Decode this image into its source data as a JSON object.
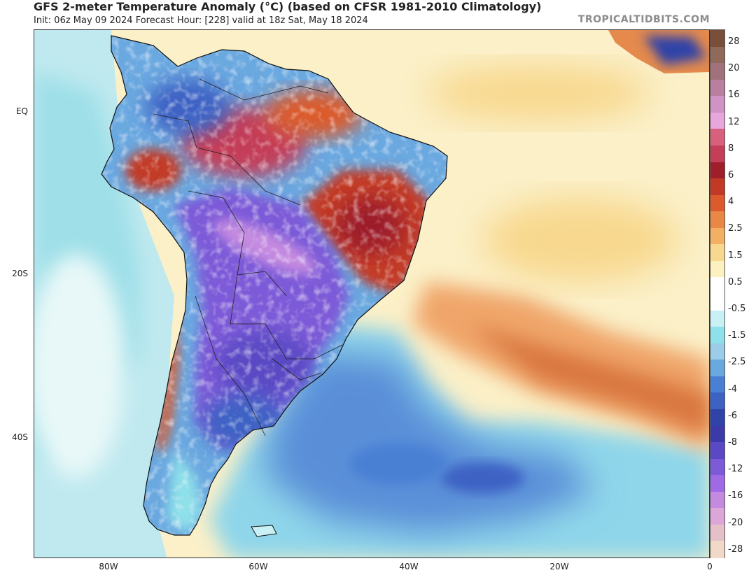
{
  "header": {
    "title": "GFS 2-meter Temperature Anomaly (°C) (based on CFSR 1981-2010 Climatology)",
    "subtitle": "Init: 06z May 09 2024   Forecast Hour: [228]   valid at 18z Sat, May 18 2024",
    "brand": "TROPICALTIDBITS.COM"
  },
  "axes": {
    "y_labels": [
      "EQ",
      "20S",
      "40S"
    ],
    "x_labels": [
      "80W",
      "60W",
      "40W",
      "20W",
      "0"
    ]
  },
  "colorbar": {
    "labels": [
      "28",
      "20",
      "16",
      "12",
      "8",
      "6",
      "4",
      "2.5",
      "1.5",
      "0.5",
      "-0.5",
      "-1.5",
      "-2.5",
      "-4",
      "-6",
      "-8",
      "-12",
      "-16",
      "-20",
      "-28"
    ],
    "colors": [
      "#7a4f3a",
      "#8f6a5a",
      "#a2727c",
      "#b87f9e",
      "#cf93c4",
      "#e7a6dc",
      "#d8607c",
      "#c43e58",
      "#9e1f2b",
      "#c23a26",
      "#dc5a2c",
      "#ea8745",
      "#f3b062",
      "#f8d88e",
      "#fdf1c0",
      "#ffffff",
      "#ffffff",
      "#c9f0f4",
      "#8ee0ea",
      "#9ccde8",
      "#6aa8e0",
      "#4a80d4",
      "#3d62c4",
      "#2f43a8",
      "#3c3aa8",
      "#5a48c4",
      "#7d5ad8",
      "#a06ae6",
      "#c48ae0",
      "#dca6d8",
      "#e6c0c8",
      "#f2d8c6"
    ]
  }
}
